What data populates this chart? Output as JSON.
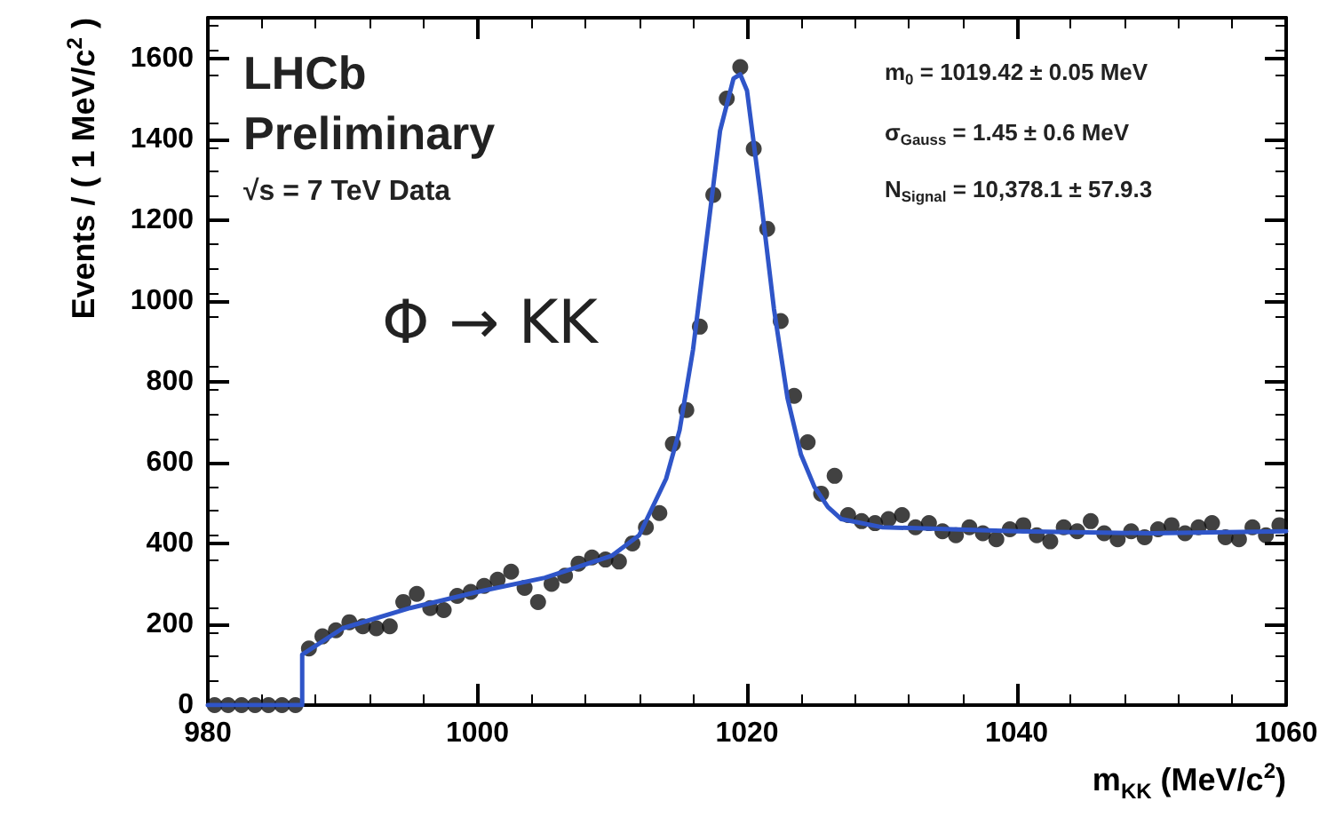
{
  "chart_data": {
    "type": "scatter",
    "xlabel": "m$_{KK}$ (MeV/c$^{2}$)",
    "ylabel": "Events / ( 1 MeV/c$^{2}$ )",
    "xlim": [
      980,
      1060
    ],
    "xticks": [
      980,
      1000,
      1020,
      1040,
      1060
    ],
    "ylim": [
      0,
      1700
    ],
    "yticks": [
      0,
      200,
      400,
      600,
      800,
      1000,
      1200,
      1400,
      1600
    ],
    "grid": false,
    "annotations": [
      "LHCb",
      "Preliminary",
      "√s = 7 TeV Data",
      "Φ → KK",
      "m$_{0}$ = 1019.42 ± 0.05 MeV",
      "σ$_{Gauss}$ = 1.45 ± 0.6 MeV",
      "N$_{Signal}$ = 10,378.1 ± 57.9.3"
    ],
    "series": [
      {
        "type": "scatter",
        "marker": "circle",
        "color": "#111111",
        "x": [
          980.5,
          981.5,
          982.5,
          983.5,
          984.5,
          985.5,
          986.5,
          987.5,
          988.5,
          989.5,
          990.5,
          991.5,
          992.5,
          993.5,
          994.5,
          995.5,
          996.5,
          997.5,
          998.5,
          999.5,
          1000.5,
          1001.5,
          1002.5,
          1003.5,
          1004.5,
          1005.5,
          1006.5,
          1007.5,
          1008.5,
          1009.5,
          1010.5,
          1011.5,
          1012.5,
          1013.5,
          1014.5,
          1015.5,
          1016.5,
          1017.5,
          1018.5,
          1019.5,
          1020.5,
          1021.5,
          1022.5,
          1023.5,
          1024.5,
          1025.5,
          1026.5,
          1027.5,
          1028.5,
          1029.5,
          1030.5,
          1031.5,
          1032.5,
          1033.5,
          1034.5,
          1035.5,
          1036.5,
          1037.5,
          1038.5,
          1039.5,
          1040.5,
          1041.5,
          1042.5,
          1043.5,
          1044.5,
          1045.5,
          1046.5,
          1047.5,
          1048.5,
          1049.5,
          1050.5,
          1051.5,
          1052.5,
          1053.5,
          1054.5,
          1055.5,
          1056.5,
          1057.5,
          1058.5,
          1059.5
        ],
        "values": [
          0,
          0,
          0,
          0,
          0,
          0,
          0,
          140,
          170,
          185,
          205,
          195,
          190,
          195,
          255,
          275,
          240,
          235,
          270,
          280,
          295,
          310,
          330,
          290,
          255,
          300,
          320,
          350,
          365,
          360,
          355,
          400,
          440,
          475,
          646,
          730,
          936,
          1262,
          1500,
          1578,
          1376,
          1178,
          950,
          765,
          650,
          523,
          567,
          470,
          455,
          450,
          460,
          470,
          440,
          450,
          430,
          420,
          440,
          425,
          410,
          435,
          445,
          420,
          405,
          440,
          430,
          455,
          425,
          410,
          430,
          415,
          435,
          445,
          425,
          440,
          450,
          415,
          410,
          440,
          420,
          445
        ]
      },
      {
        "type": "line",
        "marker": "none",
        "color": "#2f55c8",
        "x": [
          980,
          987,
          987,
          990,
          995,
          1000,
          1005,
          1010,
          1012,
          1014,
          1015,
          1016,
          1017,
          1018,
          1019,
          1019.5,
          1020,
          1021,
          1022,
          1023,
          1024,
          1025,
          1026,
          1027,
          1030,
          1040,
          1050,
          1060
        ],
        "values": [
          0,
          0,
          125,
          190,
          240,
          280,
          315,
          370,
          420,
          560,
          680,
          880,
          1150,
          1420,
          1550,
          1560,
          1520,
          1260,
          980,
          760,
          620,
          540,
          490,
          460,
          440,
          430,
          425,
          430
        ]
      }
    ]
  }
}
